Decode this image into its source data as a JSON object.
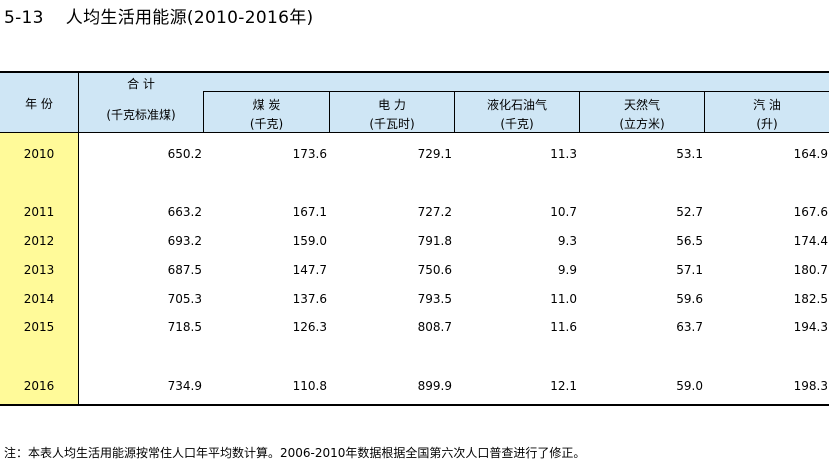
{
  "title": {
    "number": "5-13",
    "text": "人均生活用能源(2010-2016年)"
  },
  "header": {
    "year": "年 份",
    "total_label": "合 计",
    "total_unit": "(千克标准煤)",
    "columns": [
      {
        "label": "煤 炭",
        "unit": "(千克)"
      },
      {
        "label": "电 力",
        "unit": "(千瓦时)"
      },
      {
        "label": "液化石油气",
        "unit": "(千克)"
      },
      {
        "label": "天然气",
        "unit": "(立方米)"
      },
      {
        "label": "汽 油",
        "unit": "(升)"
      }
    ]
  },
  "rows": [
    {
      "year": "2010",
      "values": [
        "650.2",
        "173.6",
        "729.1",
        "11.3",
        "53.1",
        "164.9"
      ]
    },
    {
      "year": "2011",
      "values": [
        "663.2",
        "167.1",
        "727.2",
        "10.7",
        "52.7",
        "167.6"
      ]
    },
    {
      "year": "2012",
      "values": [
        "693.2",
        "159.0",
        "791.8",
        "9.3",
        "56.5",
        "174.4"
      ]
    },
    {
      "year": "2013",
      "values": [
        "687.5",
        "147.7",
        "750.6",
        "9.9",
        "57.1",
        "180.7"
      ]
    },
    {
      "year": "2014",
      "values": [
        "705.3",
        "137.6",
        "793.5",
        "11.0",
        "59.6",
        "182.5"
      ]
    },
    {
      "year": "2015",
      "values": [
        "718.5",
        "126.3",
        "808.7",
        "11.6",
        "63.7",
        "194.3"
      ]
    },
    {
      "year": "2016",
      "values": [
        "734.9",
        "110.8",
        "899.9",
        "12.1",
        "59.0",
        "198.3"
      ]
    }
  ],
  "note": "注：本表人均生活用能源按常住人口年平均数计算。2006-2010年数据根据全国第六次人口普查进行了修正。"
}
